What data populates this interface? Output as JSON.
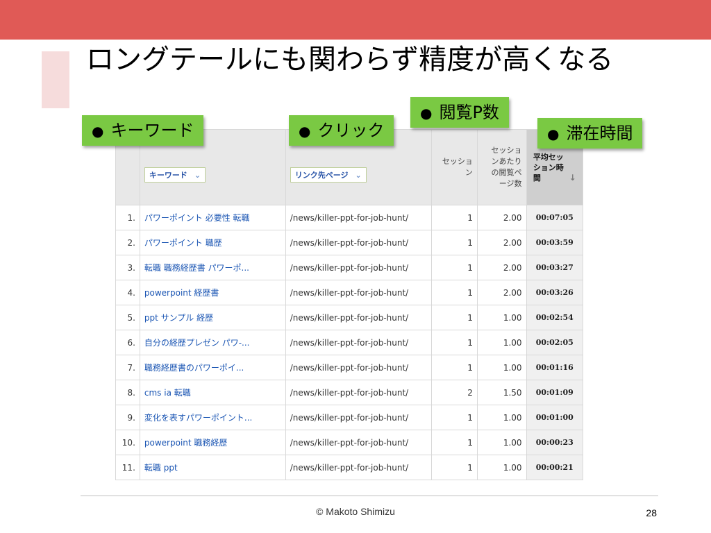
{
  "slide": {
    "title": "ロングテールにも関わらず精度が高くなる",
    "footer": "© Makoto Shimizu",
    "page_number": "28",
    "colors": {
      "top_bar": "#e05a56",
      "accent_block": "#f6dcdc",
      "callout_green": "#7ac943",
      "link_blue": "#1a55b3"
    }
  },
  "callouts": {
    "keyword": "キーワード",
    "click": "クリック",
    "pageviews": "閲覧P数",
    "time_on_site": "滞在時間",
    "bullet": "●"
  },
  "table": {
    "headers": {
      "keyword_select": "キーワード",
      "landing_select": "リンク先ページ",
      "sessions": "セッション",
      "pages_per_session": "セッションあたりの閲覧ページ数",
      "avg_duration": "平均セッション時間",
      "chevron": "⌄",
      "sort_arrow": "↓"
    },
    "rows": [
      {
        "idx": "1.",
        "keyword": "パワーポイント 必要性 転職",
        "page": "/news/killer-ppt-for-job-hunt/",
        "sessions": "1",
        "pps": "2.00",
        "time": "00:07:05"
      },
      {
        "idx": "2.",
        "keyword": "パワーポイント 職歴",
        "page": "/news/killer-ppt-for-job-hunt/",
        "sessions": "1",
        "pps": "2.00",
        "time": "00:03:59"
      },
      {
        "idx": "3.",
        "keyword": "転職 職務経歴書 パワーポ...",
        "page": "/news/killer-ppt-for-job-hunt/",
        "sessions": "1",
        "pps": "2.00",
        "time": "00:03:27"
      },
      {
        "idx": "4.",
        "keyword": "powerpoint 経歴書",
        "page": "/news/killer-ppt-for-job-hunt/",
        "sessions": "1",
        "pps": "2.00",
        "time": "00:03:26"
      },
      {
        "idx": "5.",
        "keyword": "ppt サンプル 経歴",
        "page": "/news/killer-ppt-for-job-hunt/",
        "sessions": "1",
        "pps": "1.00",
        "time": "00:02:54"
      },
      {
        "idx": "6.",
        "keyword": "自分の経歴プレゼン パワ-...",
        "page": "/news/killer-ppt-for-job-hunt/",
        "sessions": "1",
        "pps": "1.00",
        "time": "00:02:05"
      },
      {
        "idx": "7.",
        "keyword": "職務経歴書のパワーポイ...",
        "page": "/news/killer-ppt-for-job-hunt/",
        "sessions": "1",
        "pps": "1.00",
        "time": "00:01:16"
      },
      {
        "idx": "8.",
        "keyword": "cms ia 転職",
        "page": "/news/killer-ppt-for-job-hunt/",
        "sessions": "2",
        "pps": "1.50",
        "time": "00:01:09"
      },
      {
        "idx": "9.",
        "keyword": "変化を表すパワーポイント...",
        "page": "/news/killer-ppt-for-job-hunt/",
        "sessions": "1",
        "pps": "1.00",
        "time": "00:01:00"
      },
      {
        "idx": "10.",
        "keyword": "powerpoint 職務経歴",
        "page": "/news/killer-ppt-for-job-hunt/",
        "sessions": "1",
        "pps": "1.00",
        "time": "00:00:23"
      },
      {
        "idx": "11.",
        "keyword": "転職 ppt",
        "page": "/news/killer-ppt-for-job-hunt/",
        "sessions": "1",
        "pps": "1.00",
        "time": "00:00:21"
      }
    ]
  }
}
